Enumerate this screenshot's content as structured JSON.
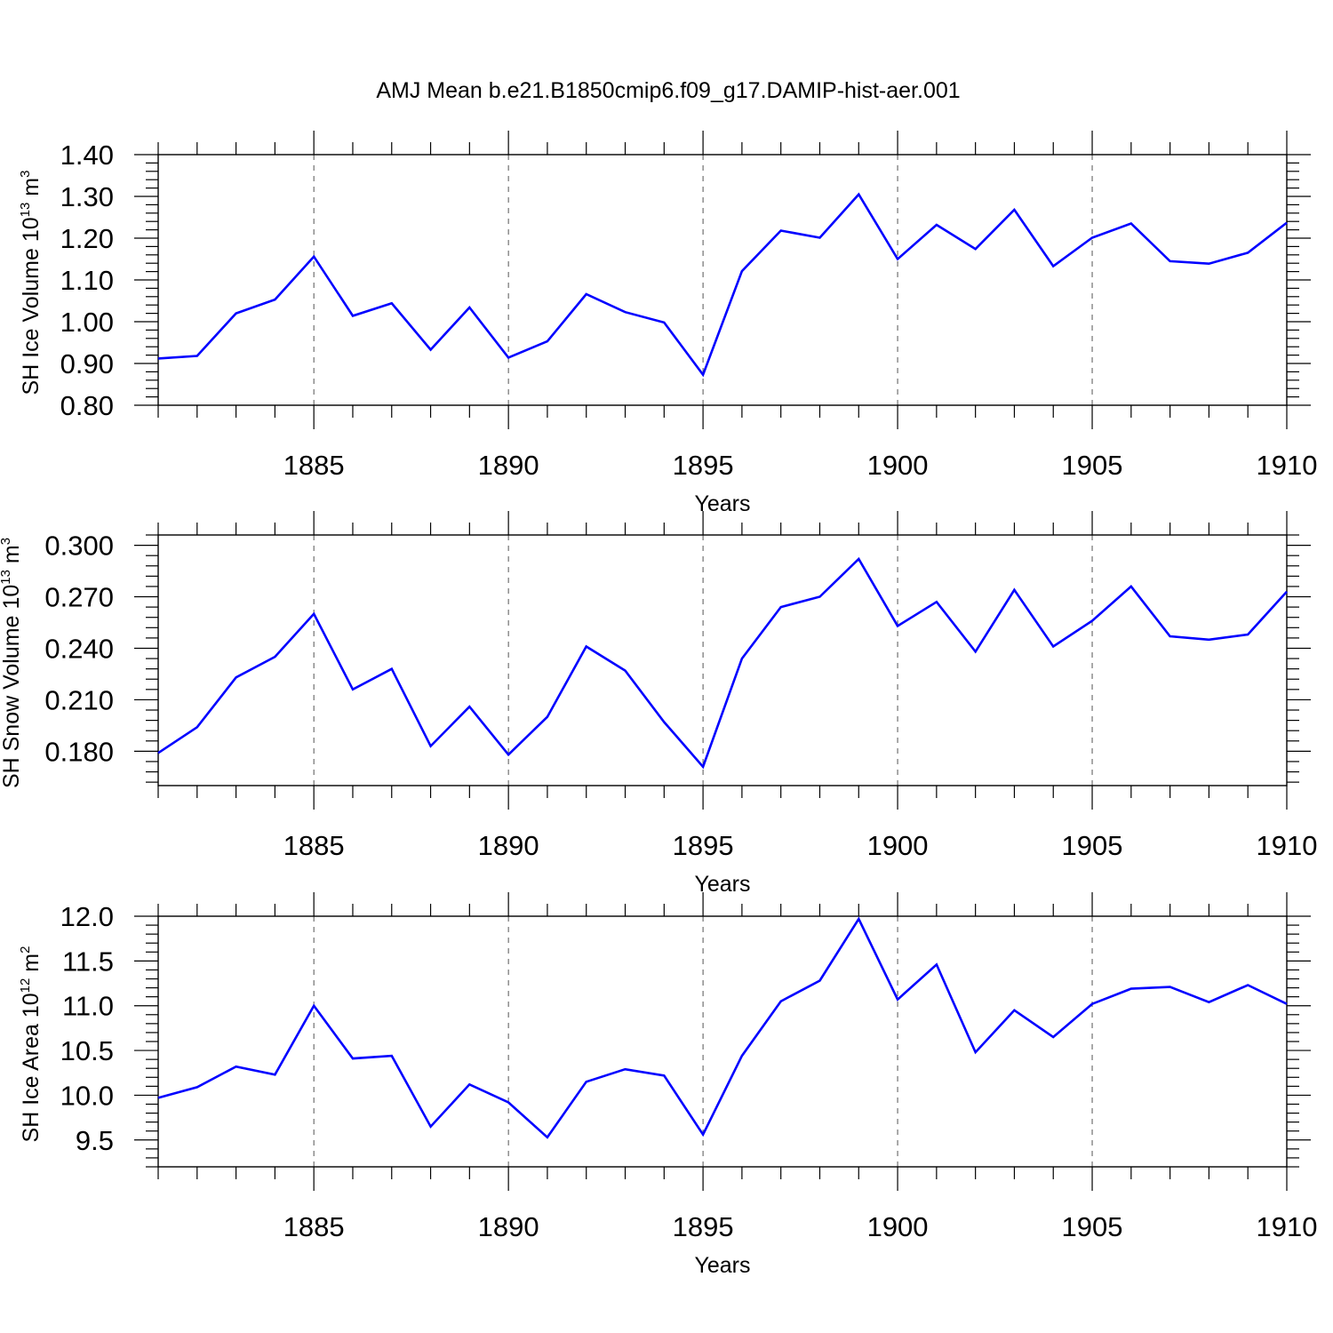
{
  "title": "AMJ Mean b.e21.B1850cmip6.f09_g17.DAMIP-hist-aer.001",
  "colors": {
    "line": "#0000ff",
    "axis": "#000000",
    "grid": "#555555"
  },
  "chart_data": [
    {
      "type": "line",
      "ylabel_main": "SH Ice Volume 10",
      "ylabel_exp": "13",
      "ylabel_unit": " m",
      "ylabel_unit_exp": "3",
      "xlabel": "Years",
      "xlim": [
        1881,
        1910
      ],
      "ylim": [
        0.8,
        1.4
      ],
      "x_ticks": [
        "1885",
        "1890",
        "1895",
        "1900",
        "1905",
        "1910"
      ],
      "y_ticks": [
        "0.80",
        "0.90",
        "1.00",
        "1.10",
        "1.20",
        "1.30",
        "1.40"
      ],
      "x": [
        1881,
        1882,
        1883,
        1884,
        1885,
        1886,
        1887,
        1888,
        1889,
        1890,
        1891,
        1892,
        1893,
        1894,
        1895,
        1896,
        1897,
        1898,
        1899,
        1900,
        1901,
        1902,
        1903,
        1904,
        1905,
        1906,
        1907,
        1908,
        1909,
        1910
      ],
      "values": [
        0.912,
        0.918,
        1.02,
        1.053,
        1.156,
        1.014,
        1.044,
        0.933,
        1.034,
        0.914,
        0.953,
        1.066,
        1.023,
        0.998,
        0.873,
        1.121,
        1.218,
        1.201,
        1.305,
        1.15,
        1.232,
        1.174,
        1.268,
        1.133,
        1.201,
        1.235,
        1.145,
        1.139,
        1.165,
        1.237
      ],
      "grid": "vertical dashed at major x ticks"
    },
    {
      "type": "line",
      "ylabel_main": "SH Snow Volume 10",
      "ylabel_exp": "13",
      "ylabel_unit": " m",
      "ylabel_unit_exp": "3",
      "xlabel": "Years",
      "xlim": [
        1881,
        1910
      ],
      "ylim": [
        0.16,
        0.306
      ],
      "x_ticks": [
        "1885",
        "1890",
        "1895",
        "1900",
        "1905",
        "1910"
      ],
      "y_ticks": [
        "0.180",
        "0.210",
        "0.240",
        "0.270",
        "0.300"
      ],
      "x": [
        1881,
        1882,
        1883,
        1884,
        1885,
        1886,
        1887,
        1888,
        1889,
        1890,
        1891,
        1892,
        1893,
        1894,
        1895,
        1896,
        1897,
        1898,
        1899,
        1900,
        1901,
        1902,
        1903,
        1904,
        1905,
        1906,
        1907,
        1908,
        1909,
        1910
      ],
      "values": [
        0.179,
        0.194,
        0.223,
        0.235,
        0.26,
        0.216,
        0.228,
        0.183,
        0.206,
        0.178,
        0.2,
        0.241,
        0.227,
        0.197,
        0.171,
        0.234,
        0.264,
        0.27,
        0.292,
        0.253,
        0.267,
        0.238,
        0.274,
        0.241,
        0.256,
        0.276,
        0.247,
        0.245,
        0.248,
        0.273
      ],
      "grid": "vertical dashed at major x ticks"
    },
    {
      "type": "line",
      "ylabel_main": "SH Ice Area 10",
      "ylabel_exp": "12",
      "ylabel_unit": " m",
      "ylabel_unit_exp": "2",
      "xlabel": "Years",
      "xlim": [
        1881,
        1910
      ],
      "ylim": [
        9.2,
        12.0
      ],
      "x_ticks": [
        "1885",
        "1890",
        "1895",
        "1900",
        "1905",
        "1910"
      ],
      "y_ticks": [
        "9.5",
        "10.0",
        "10.5",
        "11.0",
        "11.5",
        "12.0"
      ],
      "x": [
        1881,
        1882,
        1883,
        1884,
        1885,
        1886,
        1887,
        1888,
        1889,
        1890,
        1891,
        1892,
        1893,
        1894,
        1895,
        1896,
        1897,
        1898,
        1899,
        1900,
        1901,
        1902,
        1903,
        1904,
        1905,
        1906,
        1907,
        1908,
        1909,
        1910
      ],
      "values": [
        9.97,
        10.09,
        10.32,
        10.23,
        11.0,
        10.41,
        10.44,
        9.65,
        10.12,
        9.92,
        9.53,
        10.15,
        10.29,
        10.22,
        9.56,
        10.44,
        11.05,
        11.28,
        11.97,
        11.07,
        11.46,
        10.48,
        10.95,
        10.65,
        11.02,
        11.19,
        11.21,
        11.04,
        11.23,
        11.02
      ],
      "grid": "vertical dashed at major x ticks"
    }
  ]
}
